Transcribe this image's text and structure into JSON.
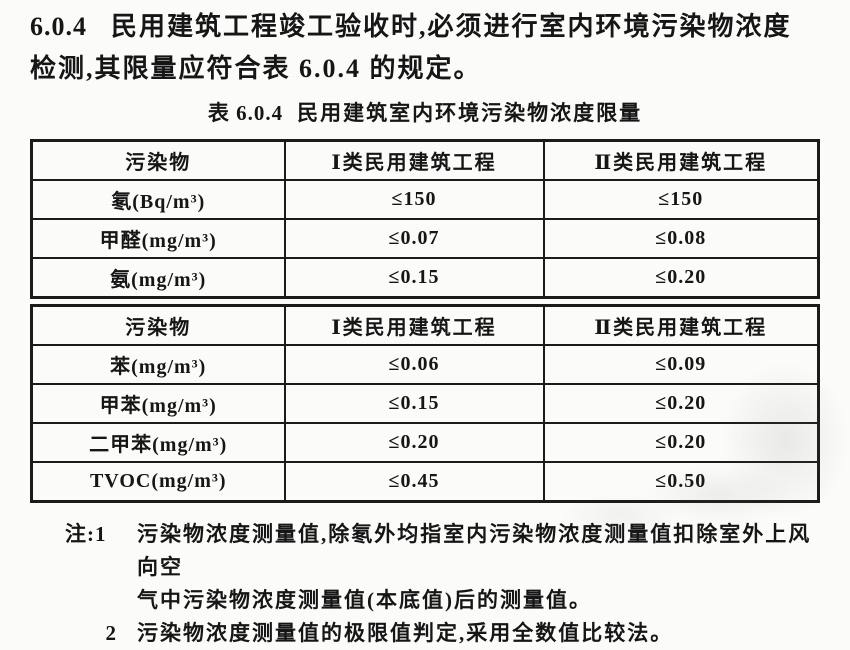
{
  "document": {
    "clause": {
      "number": "6.0.4",
      "line1": "民用建筑工程竣工验收时,必须进行室内环境污染物浓度",
      "line2": "检测,其限量应符合表 6.0.4 的规定。"
    },
    "table": {
      "title_prefix": "表 6.0.4",
      "title_text": "民用建筑室内环境污染物浓度限量",
      "sections": [
        {
          "headers": [
            "污染物",
            "Ⅰ类民用建筑工程",
            "Ⅱ类民用建筑工程"
          ],
          "rows": [
            [
              "氡(Bq/m³)",
              "≤150",
              "≤150"
            ],
            [
              "甲醛(mg/m³)",
              "≤0.07",
              "≤0.08"
            ],
            [
              "氨(mg/m³)",
              "≤0.15",
              "≤0.20"
            ]
          ]
        },
        {
          "headers": [
            "污染物",
            "Ⅰ类民用建筑工程",
            "Ⅱ类民用建筑工程"
          ],
          "rows": [
            [
              "苯(mg/m³)",
              "≤0.06",
              "≤0.09"
            ],
            [
              "甲苯(mg/m³)",
              "≤0.15",
              "≤0.20"
            ],
            [
              "二甲苯(mg/m³)",
              "≤0.20",
              "≤0.20"
            ],
            [
              "TVOC(mg/m³)",
              "≤0.45",
              "≤0.50"
            ]
          ]
        }
      ]
    },
    "notes": {
      "note1_label": "注:1",
      "note1_line1": "污染物浓度测量值,除氡外均指室内污染物浓度测量值扣除室外上风向空",
      "note1_line2": "气中污染物浓度测量值(本底值)后的测量值。",
      "note2_label": "2",
      "note2_text": "污染物浓度测量值的极限值判定,采用全数值比较法。"
    },
    "colors": {
      "ink": "#1b1b1b",
      "paper": "#fbfbf9"
    }
  }
}
